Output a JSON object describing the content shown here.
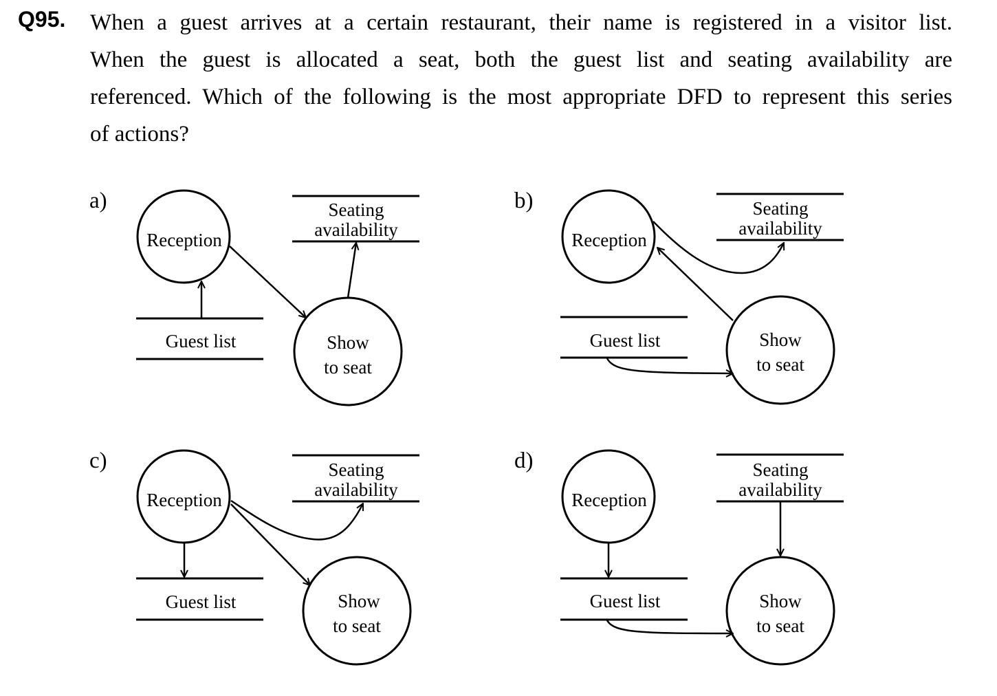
{
  "question": {
    "number": "Q95.",
    "lines": [
      "When a guest arrives at a certain restaurant, their name is registered in a visitor list.",
      "When the guest is allocated a seat, both the guest list and seating availability are",
      "referenced. Which of the following is the most appropriate DFD to represent this series",
      "of actions?"
    ]
  },
  "labels": {
    "reception": "Reception",
    "seating_1": "Seating",
    "seating_2": "availability",
    "guest_list": "Guest list",
    "show_1": "Show",
    "show_2": "to seat"
  },
  "options": [
    "a)",
    "b)",
    "c)",
    "d)"
  ]
}
